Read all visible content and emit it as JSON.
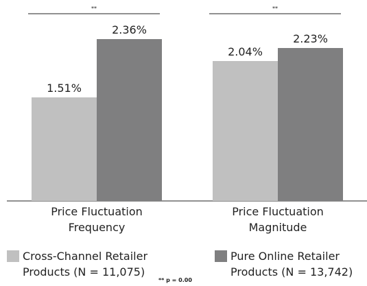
{
  "chart_data": {
    "type": "bar",
    "categories": [
      "Price Fluctuation Frequency",
      "Price Fluctuation Magnitude"
    ],
    "series": [
      {
        "name": "Cross-Channel Retailer Products (N = 11,075)",
        "color": "#c0c0c0",
        "values": [
          1.51,
          2.04
        ],
        "value_labels": [
          "1.51%",
          "2.04%"
        ]
      },
      {
        "name": "Pure Online Retailer Products (N = 13,742)",
        "color": "#7f7f80",
        "values": [
          2.36,
          2.23
        ],
        "value_labels": [
          "2.36%",
          "2.23%"
        ]
      }
    ],
    "ylim": [
      0,
      2.5
    ],
    "annotations": [
      "**",
      "**"
    ],
    "footnote": "** p = 0.00"
  }
}
